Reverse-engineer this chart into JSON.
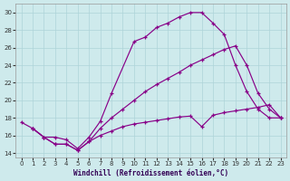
{
  "xlabel": "Windchill (Refroidissement éolien,°C)",
  "bg_color": "#ceeaec",
  "grid_color": "#aed4d8",
  "line_color": "#880088",
  "ylim": [
    13.5,
    31.0
  ],
  "xlim": [
    -0.5,
    23.5
  ],
  "yticks": [
    14,
    16,
    18,
    20,
    22,
    24,
    26,
    28,
    30
  ],
  "xticks": [
    0,
    1,
    2,
    3,
    4,
    5,
    6,
    7,
    8,
    9,
    10,
    11,
    12,
    13,
    14,
    15,
    16,
    17,
    18,
    19,
    20,
    21,
    22,
    23
  ],
  "line1_x": [
    0,
    1,
    2,
    3,
    4,
    5,
    6,
    7,
    8,
    10,
    11,
    12,
    13,
    14,
    15,
    16,
    17,
    18,
    19,
    20,
    21,
    22,
    23
  ],
  "line1_y": [
    17.5,
    16.8,
    15.8,
    15.8,
    15.5,
    14.5,
    15.8,
    17.6,
    20.8,
    26.7,
    27.2,
    28.3,
    28.8,
    29.5,
    30.0,
    30.0,
    28.8,
    27.5,
    24.0,
    21.0,
    19.0,
    18.0,
    18.0
  ],
  "line2_x": [
    1,
    2,
    3,
    4,
    5,
    6,
    7,
    8,
    9,
    10,
    11,
    12,
    13,
    14,
    15,
    16,
    17,
    18,
    19,
    20,
    21,
    22,
    23
  ],
  "line2_y": [
    16.8,
    15.8,
    15.0,
    15.0,
    14.3,
    15.3,
    16.8,
    18.0,
    19.0,
    20.0,
    21.0,
    21.8,
    22.5,
    23.2,
    24.0,
    24.6,
    25.2,
    25.8,
    26.2,
    24.0,
    20.8,
    19.0,
    18.0
  ],
  "line3_x": [
    1,
    2,
    3,
    4,
    5,
    6,
    7,
    8,
    9,
    10,
    11,
    12,
    13,
    14,
    15,
    16,
    17,
    18,
    19,
    20,
    21,
    22,
    23
  ],
  "line3_y": [
    16.8,
    15.8,
    15.0,
    15.0,
    14.3,
    15.3,
    16.0,
    16.5,
    17.0,
    17.3,
    17.5,
    17.7,
    17.9,
    18.1,
    18.2,
    17.0,
    18.3,
    18.6,
    18.8,
    19.0,
    19.2,
    19.5,
    18.0
  ]
}
